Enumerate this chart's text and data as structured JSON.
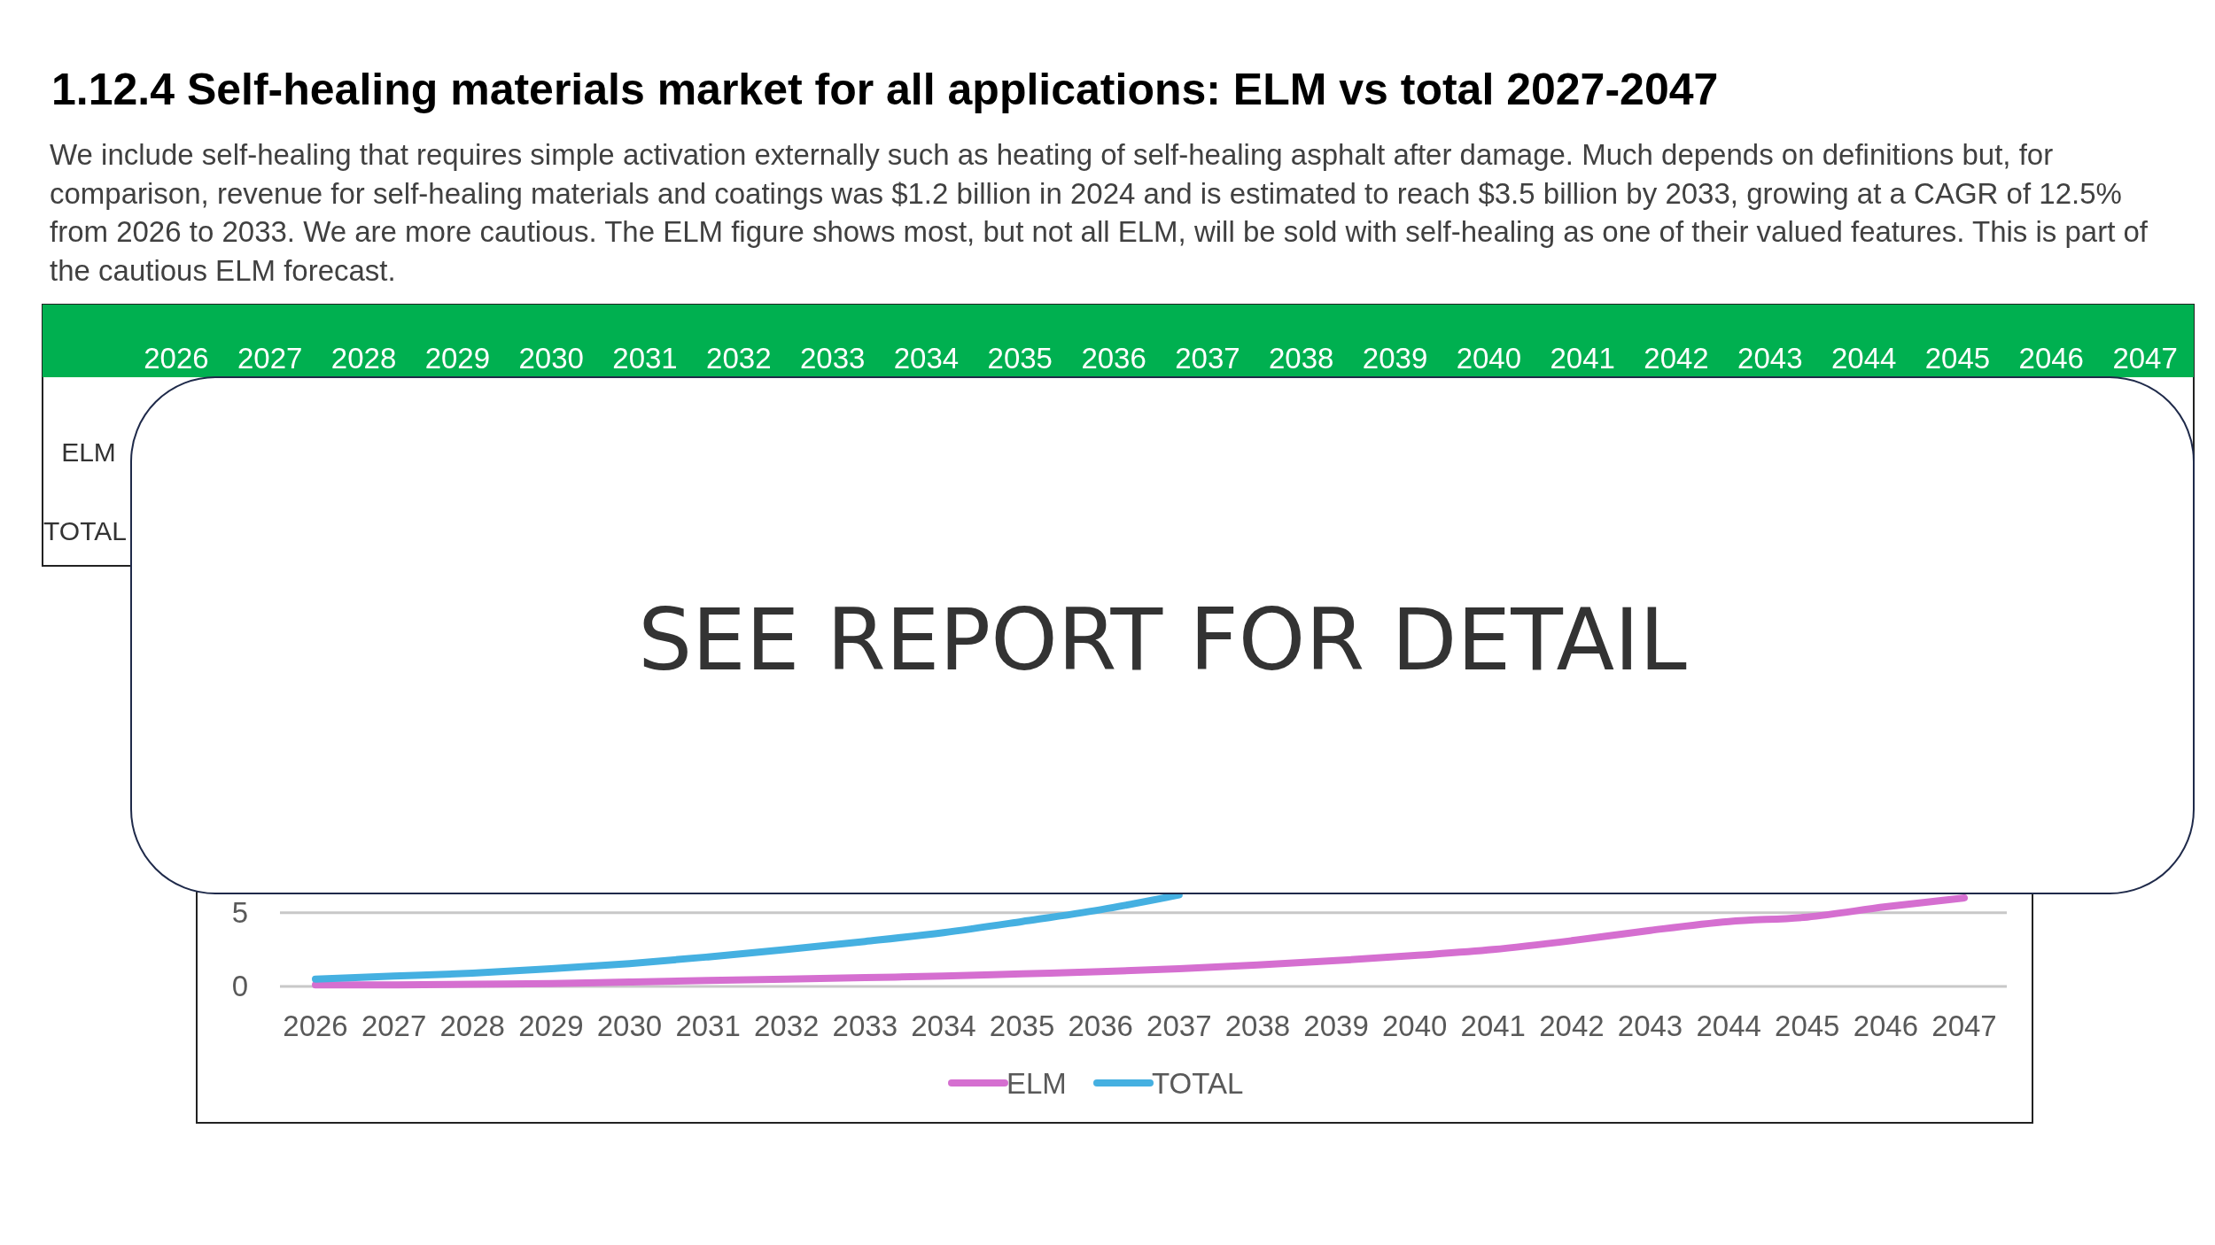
{
  "chart_data": {
    "type": "line",
    "title": "1.12.4 Self-healing materials market for all applications: ELM vs total 2027-2047",
    "subtitle": "We include self-healing that requires simple activation externally such as heating of self-healing asphalt after damage. Much depends on definitions but, for comparison, revenue for self-healing materials and coatings was $1.2 billion in 2024 and is estimated to reach $3.5 billion by 2033, growing at a CAGR of 12.5% from 2026 to 2033. We are more cautious. The ELM figure shows most, but not all ELM, will be sold with self-healing as one of their valued features. This is part of the cautious ELM forecast.",
    "categories": [
      "2026",
      "2027",
      "2028",
      "2029",
      "2030",
      "2031",
      "2032",
      "2033",
      "2034",
      "2035",
      "2036",
      "2037",
      "2038",
      "2039",
      "2040",
      "2041",
      "2042",
      "2043",
      "2044",
      "2045",
      "2046",
      "2047"
    ],
    "series": [
      {
        "name": "ELM",
        "color": "#d56fd0",
        "values": [
          0.1,
          0.1,
          0.15,
          0.2,
          0.3,
          0.4,
          0.5,
          0.6,
          0.7,
          0.85,
          1.0,
          1.2,
          1.45,
          1.75,
          2.1,
          2.5,
          3.1,
          3.8,
          4.4,
          4.7,
          5.4,
          6.0
        ]
      },
      {
        "name": "TOTAL",
        "color": "#45b0e1",
        "values": [
          0.5,
          0.7,
          0.9,
          1.2,
          1.55,
          2.0,
          2.5,
          3.05,
          3.65,
          4.4,
          5.2,
          6.2,
          null,
          null,
          null,
          null,
          null,
          null,
          null,
          null,
          null,
          null
        ]
      }
    ],
    "ylim": [
      0,
      6.3
    ],
    "yticks": [
      0,
      5
    ],
    "grid": "y",
    "legend": "bottom",
    "marker": "none",
    "line_style": "solid",
    "annotations": [
      "SEE REPORT FOR DETAIL"
    ]
  }
}
